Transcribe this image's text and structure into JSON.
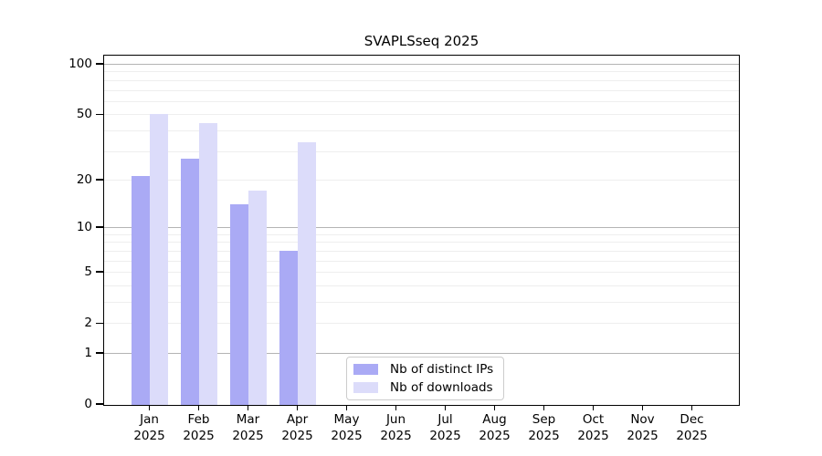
{
  "chart_data": {
    "type": "bar",
    "title": "SVAPLSseq 2025",
    "year": "2025",
    "categories": [
      "Jan",
      "Feb",
      "Mar",
      "Apr",
      "May",
      "Jun",
      "Jul",
      "Aug",
      "Sep",
      "Oct",
      "Nov",
      "Dec"
    ],
    "series": [
      {
        "name": "Nb of distinct IPs",
        "color": "#aaaaf5",
        "values": [
          21,
          27,
          14,
          7,
          0,
          0,
          0,
          0,
          0,
          0,
          0,
          0
        ]
      },
      {
        "name": "Nb of downloads",
        "color": "#dcdcfa",
        "values": [
          50,
          44,
          17,
          34,
          0,
          0,
          0,
          0,
          0,
          0,
          0,
          0
        ]
      }
    ],
    "yticks": [
      0,
      1,
      2,
      5,
      10,
      20,
      50,
      100
    ],
    "ylim": [
      0,
      113
    ],
    "yscale": "log10(value+1)",
    "grid": "horizontal, minor lines at 2-9 and 20-90, major lines at 1, 10, 100",
    "legend_position": "inside lower center",
    "colors": {
      "axis": "#000000",
      "grid_minor": "#eeeeee",
      "grid_major": "#b4b4b4",
      "background": "#ffffff"
    }
  }
}
